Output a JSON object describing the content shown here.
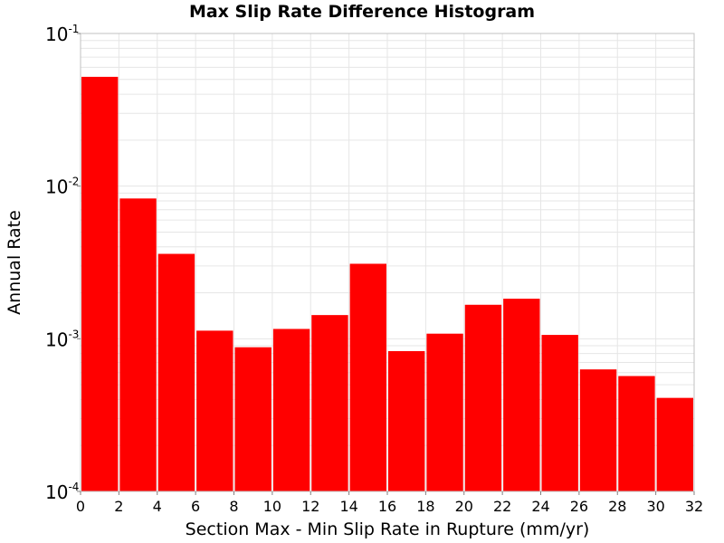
{
  "chart_data": {
    "type": "bar",
    "title": "Max Slip Rate Difference Histogram",
    "xlabel": "Section Max - Min Slip Rate in Rupture (mm/yr)",
    "ylabel": "Annual Rate",
    "x_bin_width": 2,
    "x_bin_starts": [
      0,
      2,
      4,
      6,
      8,
      10,
      12,
      14,
      16,
      18,
      20,
      22,
      24,
      26,
      28,
      30
    ],
    "values": [
      0.052,
      0.0083,
      0.0036,
      0.00113,
      0.00088,
      0.00116,
      0.00143,
      0.0031,
      0.00083,
      0.00108,
      0.00167,
      0.00183,
      0.00106,
      0.00063,
      0.00057,
      0.00041
    ],
    "xlim": [
      0,
      32
    ],
    "ylim": [
      0.0001,
      0.1
    ],
    "y_scale": "log",
    "x_ticks": [
      "0",
      "2",
      "4",
      "6",
      "8",
      "10",
      "12",
      "14",
      "16",
      "18",
      "20",
      "22",
      "24",
      "26",
      "28",
      "30",
      "32"
    ],
    "y_ticks": [
      {
        "base": "10",
        "exp": "-4"
      },
      {
        "base": "10",
        "exp": "-3"
      },
      {
        "base": "10",
        "exp": "-2"
      },
      {
        "base": "10",
        "exp": "-1"
      }
    ],
    "grid": true,
    "bar_color": "#ff0000",
    "grid_color": "#e6e6e6",
    "frame_color": "#c0c0c0"
  }
}
